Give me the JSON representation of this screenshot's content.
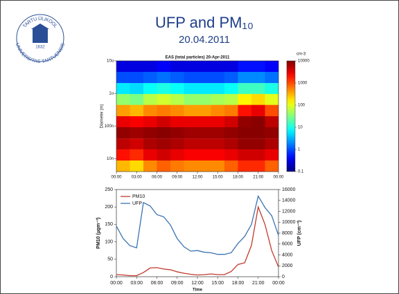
{
  "slide": {
    "title": "UFP and PM₁₀",
    "subtitle": "20.04.2011",
    "logo": {
      "top_text": "TARTU ÜLIKOOL",
      "bottom_text": "UNIVERSITAS TARTUENSIS",
      "year": "1632"
    }
  },
  "chart_data": [
    {
      "type": "heatmap",
      "title": "EAS (total particles) 20-Apr-2011",
      "ylabel": "Diameter (m)",
      "colorbar_label": "cm-3",
      "colormap": "jet",
      "log_y": true,
      "x": [
        0,
        2,
        4,
        6,
        8,
        10,
        12,
        14,
        16,
        18,
        20,
        22
      ],
      "y": [
        6.8e-06,
        3.1e-06,
        1.4e-06,
        6.5e-07,
        3e-07,
        1.35e-07,
        6.2e-08,
        2.8e-08,
        1.3e-08,
        5.9e-09
      ],
      "z": [
        [
          0.3,
          0.3,
          0.3,
          0.4,
          0.3,
          0.3,
          0.3,
          0.3,
          0.3,
          0.5,
          0.5,
          0.4
        ],
        [
          1,
          1,
          1.2,
          1.5,
          1.2,
          1,
          1,
          1,
          1.2,
          2,
          2,
          1.5
        ],
        [
          6,
          5,
          8,
          10,
          8,
          6,
          6,
          6,
          8,
          15,
          15,
          10
        ],
        [
          40,
          30,
          60,
          80,
          60,
          40,
          40,
          50,
          60,
          150,
          200,
          100
        ],
        [
          400,
          300,
          500,
          600,
          500,
          400,
          400,
          500,
          600,
          2000,
          3000,
          1000
        ],
        [
          3000,
          2500,
          3000,
          4000,
          3000,
          3000,
          3000,
          3000,
          4000,
          8000,
          9000,
          5000
        ],
        [
          8000,
          7000,
          8000,
          9000,
          8000,
          7000,
          7000,
          7000,
          8000,
          9000,
          9000,
          8000
        ],
        [
          5000,
          4000,
          6000,
          7000,
          6000,
          5000,
          5000,
          5000,
          6000,
          8000,
          8000,
          6000
        ],
        [
          2000,
          1500,
          3000,
          4000,
          3000,
          2500,
          2500,
          2500,
          3000,
          4000,
          4000,
          3000
        ],
        [
          300,
          200,
          500,
          800,
          600,
          500,
          500,
          500,
          800,
          1500,
          1500,
          800
        ]
      ],
      "xlim": [
        0,
        24
      ],
      "xticks": [
        {
          "value": 0,
          "label": "00:00"
        },
        {
          "value": 3,
          "label": "03:00"
        },
        {
          "value": 6,
          "label": "06:00"
        },
        {
          "value": 9,
          "label": "09:00"
        },
        {
          "value": 12,
          "label": "12:00"
        },
        {
          "value": 15,
          "label": "15:00"
        },
        {
          "value": 18,
          "label": "18:00"
        },
        {
          "value": 21,
          "label": "21:00"
        },
        {
          "value": 24,
          "label": "00:00"
        }
      ],
      "ylim": [
        4e-09,
        1e-05
      ],
      "yticks": [
        {
          "value": 1e-05,
          "label": "10u"
        },
        {
          "value": 1e-06,
          "label": "1u"
        },
        {
          "value": 1e-07,
          "label": "100n"
        },
        {
          "value": 1e-08,
          "label": "10n"
        }
      ],
      "clim": [
        0.1,
        10000
      ],
      "cticks": [
        10000,
        1000,
        100,
        10,
        1,
        0.1
      ]
    },
    {
      "type": "line",
      "xlabel": "Time",
      "ylabel": "PM10 (µgm⁻³)",
      "y2label": "UFP (cm⁻³)",
      "legend": "upper left",
      "x": [
        0,
        1,
        2,
        3,
        4,
        5,
        6,
        7,
        8,
        9,
        10,
        11,
        12,
        13,
        14,
        15,
        16,
        17,
        18,
        19,
        20,
        21,
        22,
        23,
        24
      ],
      "series": [
        {
          "name": "PM10",
          "color": "#c0392b",
          "values": [
            6,
            5,
            3,
            3,
            12,
            25,
            26,
            22,
            20,
            14,
            10,
            7,
            5,
            6,
            8,
            6,
            6,
            15,
            35,
            40,
            90,
            200,
            150,
            75,
            28
          ]
        },
        {
          "name": "UFP",
          "color": "#3a72b0",
          "axis": "y2",
          "values": [
            9300,
            7000,
            5700,
            5300,
            13600,
            13000,
            11400,
            11000,
            9500,
            7000,
            5500,
            4700,
            4800,
            4500,
            4400,
            4100,
            4100,
            4400,
            6100,
            7400,
            9600,
            14800,
            12700,
            11200,
            7600
          ]
        }
      ],
      "xlim": [
        0,
        24
      ],
      "xticks": [
        {
          "value": 0,
          "label": "00:00"
        },
        {
          "value": 3,
          "label": "03:00"
        },
        {
          "value": 6,
          "label": "06:00"
        },
        {
          "value": 9,
          "label": "09:00"
        },
        {
          "value": 12,
          "label": "12:00"
        },
        {
          "value": 15,
          "label": "15:00"
        },
        {
          "value": 18,
          "label": "18:00"
        },
        {
          "value": 21,
          "label": "21:00"
        },
        {
          "value": 24,
          "label": "00:00"
        }
      ],
      "ylim": [
        0,
        250
      ],
      "yticks": [
        0,
        50,
        100,
        150,
        200,
        250
      ],
      "y2lim": [
        0,
        16000
      ],
      "y2ticks": [
        0,
        2000,
        4000,
        6000,
        8000,
        10000,
        12000,
        14000,
        16000
      ]
    }
  ]
}
